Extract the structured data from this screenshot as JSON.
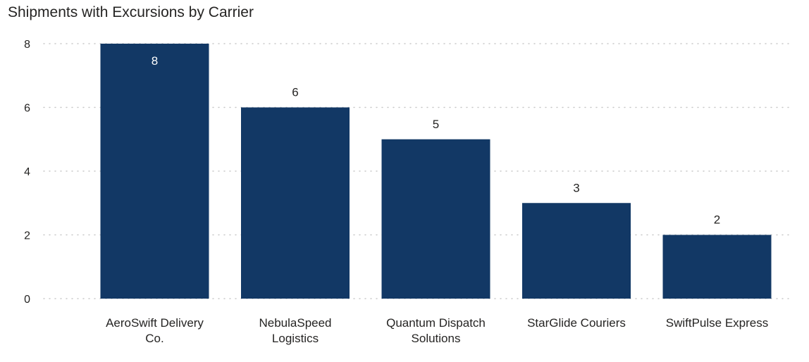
{
  "chart_data": {
    "type": "bar",
    "title": "Shipments with Excursions by Carrier",
    "xlabel": "",
    "ylabel": "",
    "categories": [
      [
        "AeroSwift Delivery",
        "Co."
      ],
      [
        "NebulaSpeed",
        "Logistics"
      ],
      [
        "Quantum Dispatch",
        "Solutions"
      ],
      [
        "StarGlide Couriers"
      ],
      [
        "SwiftPulse Express"
      ]
    ],
    "values": [
      8,
      6,
      5,
      3,
      2
    ],
    "ylim": [
      0,
      8
    ],
    "yticks": [
      0,
      2,
      4,
      6,
      8
    ],
    "grid": true,
    "data_labels": true,
    "colors": {
      "bar": "#123865",
      "label_inside": "#ffffff",
      "label_outside": "#252423"
    }
  }
}
